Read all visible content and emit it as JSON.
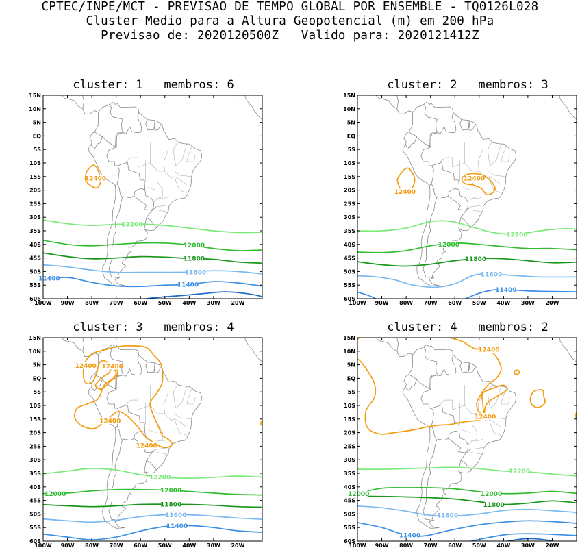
{
  "header": {
    "line1": "CPTEC/INPE/MCT - PREVISAO DE TEMPO GLOBAL POR ENSEMBLE - TQ0126L028",
    "line2": "Cluster Medio para a Altura Geopotencial (m) em 200 hPa",
    "line3": "Previsao de: 2020120500Z   Valido para: 2020121412Z"
  },
  "axes": {
    "lat_labels": [
      "15N",
      "10N",
      "5N",
      "EQ",
      "5S",
      "10S",
      "15S",
      "20S",
      "25S",
      "30S",
      "35S",
      "40S",
      "45S",
      "50S",
      "55S",
      "60S"
    ],
    "lon_labels": [
      "100W",
      "90W",
      "80W",
      "70W",
      "60W",
      "50W",
      "40W",
      "30W",
      "20W"
    ]
  },
  "contour_colors": {
    "12400": "#f39c12",
    "12200": "#7aea7a",
    "12000": "#2fbd2f",
    "11800": "#17961a",
    "11600": "#79b9f2",
    "11400": "#3a8ee6",
    "11200": "#1e6cc8"
  },
  "panels": [
    {
      "title": "cluster: 1   membros: 6",
      "labels": [
        {
          "text": "12400",
          "level": "12400",
          "lon": -78.5,
          "lat": -15.6
        },
        {
          "text": "12200",
          "level": "12200",
          "lon": -63.5,
          "lat": -32.5
        },
        {
          "text": "12000",
          "level": "12000",
          "lon": -38,
          "lat": -40.2
        },
        {
          "text": "11800",
          "level": "11800",
          "lon": -38,
          "lat": -45.2
        },
        {
          "text": "11600",
          "level": "11600",
          "lon": -37.5,
          "lat": -50.2
        },
        {
          "text": "11400",
          "level": "11400",
          "lon": -40.5,
          "lat": -54.8
        },
        {
          "text": "11400",
          "level": "11400",
          "lon": -97.5,
          "lat": -52.5
        }
      ]
    },
    {
      "title": "cluster: 2   membros: 3",
      "labels": [
        {
          "text": "12400",
          "level": "12400",
          "lon": -80.5,
          "lat": -20.5
        },
        {
          "text": "12400",
          "level": "12400",
          "lon": -52,
          "lat": -15.6
        },
        {
          "text": "12200",
          "level": "12200",
          "lon": -34.5,
          "lat": -36.3
        },
        {
          "text": "12000",
          "level": "12000",
          "lon": -62.5,
          "lat": -40
        },
        {
          "text": "11800",
          "level": "11800",
          "lon": -51.5,
          "lat": -45.3
        },
        {
          "text": "11600",
          "level": "11600",
          "lon": -45,
          "lat": -51
        },
        {
          "text": "11400",
          "level": "11400",
          "lon": -39,
          "lat": -56.6
        }
      ]
    },
    {
      "title": "cluster: 3   membros: 4",
      "labels": [
        {
          "text": "12400",
          "level": "12400",
          "lon": -82.5,
          "lat": 4.7
        },
        {
          "text": "12400",
          "level": "12400",
          "lon": -71.5,
          "lat": 4.5
        },
        {
          "text": "12400",
          "level": "12400",
          "lon": -72.5,
          "lat": -15.6
        },
        {
          "text": "12400",
          "level": "12400",
          "lon": -57.5,
          "lat": -24.7
        },
        {
          "text": "12200",
          "level": "12200",
          "lon": -52,
          "lat": -36.3
        },
        {
          "text": "12000",
          "level": "12000",
          "lon": -95,
          "lat": -42.5
        },
        {
          "text": "12000",
          "level": "12000",
          "lon": -47.5,
          "lat": -41.3
        },
        {
          "text": "11800",
          "level": "11800",
          "lon": -47.5,
          "lat": -46.4
        },
        {
          "text": "11600",
          "level": "11600",
          "lon": -45.5,
          "lat": -50.3
        },
        {
          "text": "11400",
          "level": "11400",
          "lon": -45,
          "lat": -54.4
        }
      ]
    },
    {
      "title": "cluster: 4   membros: 2",
      "labels": [
        {
          "text": "12400",
          "level": "12400",
          "lon": -46,
          "lat": 10.7
        },
        {
          "text": "12400",
          "level": "12400",
          "lon": -47.5,
          "lat": -14.1
        },
        {
          "text": "12200",
          "level": "12200",
          "lon": -33.5,
          "lat": -34.2
        },
        {
          "text": "12000",
          "level": "12000",
          "lon": -99.5,
          "lat": -42.5
        },
        {
          "text": "12000",
          "level": "12000",
          "lon": -45,
          "lat": -42.5
        },
        {
          "text": "11800",
          "level": "11800",
          "lon": -44,
          "lat": -46.5
        },
        {
          "text": "11600",
          "level": "11600",
          "lon": -63,
          "lat": -50.5
        },
        {
          "text": "11400",
          "level": "11400",
          "lon": -78.5,
          "lat": -57.8
        }
      ]
    }
  ]
}
